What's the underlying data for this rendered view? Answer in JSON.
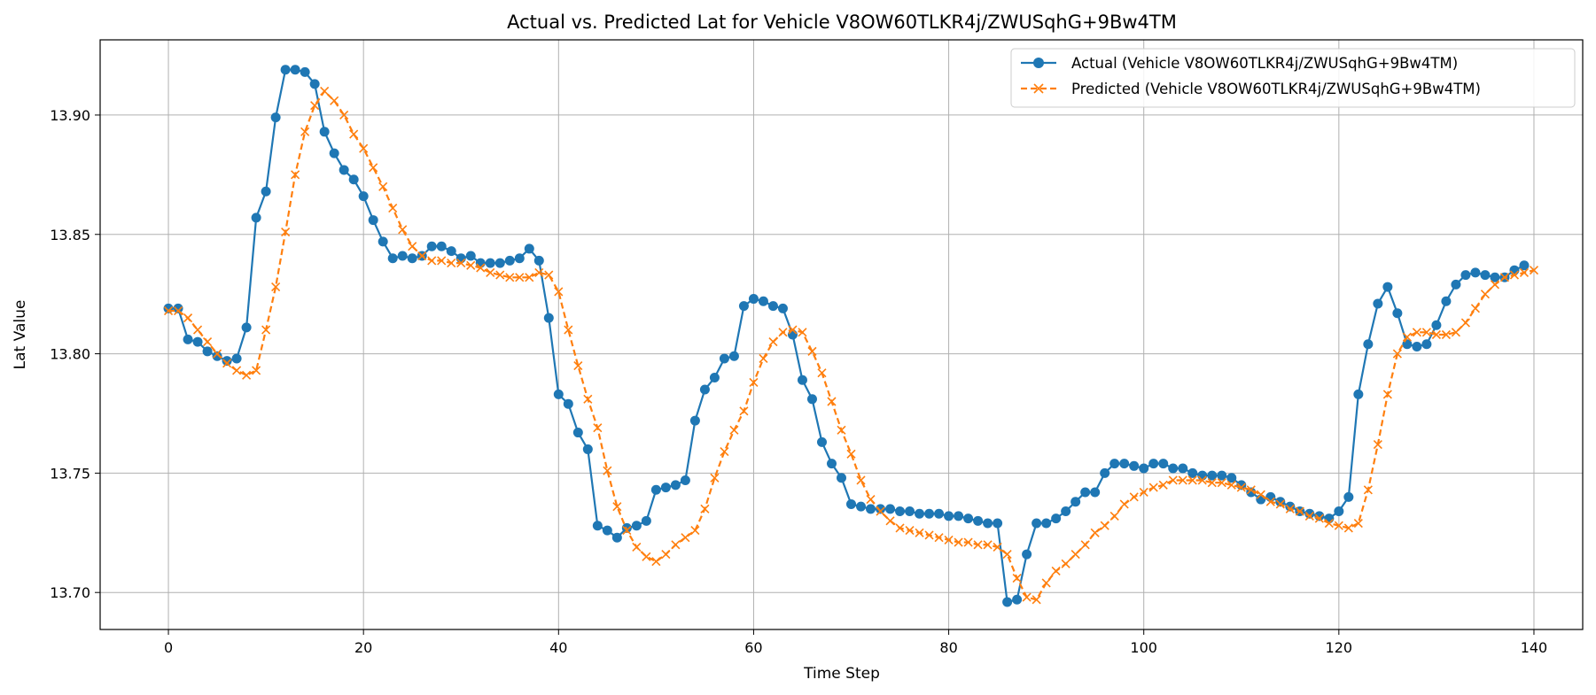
{
  "chart_data": {
    "type": "line",
    "title": "Actual vs. Predicted Lat for Vehicle V8OW60TLKR4j/ZWUSqhG+9Bw4TM",
    "xlabel": "Time Step",
    "ylabel": "Lat Value",
    "xlim": [
      -7,
      145
    ],
    "ylim": [
      13.6845,
      13.9315
    ],
    "xticks": [
      0,
      20,
      40,
      60,
      80,
      100,
      120,
      140
    ],
    "yticks": [
      13.7,
      13.75,
      13.8,
      13.85,
      13.9
    ],
    "ytick_labels": [
      "13.70",
      "13.75",
      "13.80",
      "13.85",
      "13.90"
    ],
    "grid": true,
    "legend_position": "top-right",
    "series": [
      {
        "name": "Actual (Vehicle V8OW60TLKR4j/ZWUSqhG+9Bw4TM)",
        "color": "#1f77b4",
        "linestyle": "solid",
        "marker": "circle",
        "values": [
          13.819,
          13.819,
          13.806,
          13.805,
          13.801,
          13.799,
          13.797,
          13.798,
          13.811,
          13.857,
          13.868,
          13.899,
          13.919,
          13.919,
          13.918,
          13.913,
          13.893,
          13.884,
          13.877,
          13.873,
          13.866,
          13.856,
          13.847,
          13.84,
          13.841,
          13.84,
          13.841,
          13.845,
          13.845,
          13.843,
          13.84,
          13.841,
          13.838,
          13.838,
          13.838,
          13.839,
          13.84,
          13.844,
          13.839,
          13.815,
          13.783,
          13.779,
          13.767,
          13.76,
          13.728,
          13.726,
          13.723,
          13.727,
          13.728,
          13.73,
          13.743,
          13.744,
          13.745,
          13.747,
          13.772,
          13.785,
          13.79,
          13.798,
          13.799,
          13.82,
          13.823,
          13.822,
          13.82,
          13.819,
          13.808,
          13.789,
          13.781,
          13.763,
          13.754,
          13.748,
          13.737,
          13.736,
          13.735,
          13.735,
          13.735,
          13.734,
          13.734,
          13.733,
          13.733,
          13.733,
          13.732,
          13.732,
          13.731,
          13.73,
          13.729,
          13.729,
          13.696,
          13.697,
          13.716,
          13.729,
          13.729,
          13.731,
          13.734,
          13.738,
          13.742,
          13.742,
          13.75,
          13.754,
          13.754,
          13.753,
          13.752,
          13.754,
          13.754,
          13.752,
          13.752,
          13.75,
          13.749,
          13.749,
          13.749,
          13.748,
          13.745,
          13.742,
          13.739,
          13.74,
          13.738,
          13.736,
          13.734,
          13.733,
          13.732,
          13.731,
          13.734,
          13.74,
          13.783,
          13.804,
          13.821,
          13.828,
          13.817,
          13.804,
          13.803,
          13.804,
          13.812,
          13.822,
          13.829,
          13.833,
          13.834,
          13.833,
          13.832,
          13.832,
          13.835,
          13.837
        ]
      },
      {
        "name": "Predicted (Vehicle V8OW60TLKR4j/ZWUSqhG+9Bw4TM)",
        "color": "#ff7f0e",
        "linestyle": "dashed",
        "marker": "x",
        "values": [
          13.818,
          13.818,
          13.815,
          13.81,
          13.805,
          13.8,
          13.796,
          13.793,
          13.791,
          13.793,
          13.81,
          13.828,
          13.851,
          13.875,
          13.893,
          13.904,
          13.91,
          13.906,
          13.9,
          13.892,
          13.886,
          13.878,
          13.87,
          13.861,
          13.852,
          13.845,
          13.841,
          13.839,
          13.839,
          13.838,
          13.838,
          13.837,
          13.836,
          13.834,
          13.833,
          13.832,
          13.832,
          13.832,
          13.834,
          13.833,
          13.826,
          13.81,
          13.795,
          13.781,
          13.769,
          13.751,
          13.736,
          13.726,
          13.719,
          13.715,
          13.713,
          13.716,
          13.72,
          13.723,
          13.726,
          13.735,
          13.748,
          13.759,
          13.768,
          13.776,
          13.788,
          13.798,
          13.805,
          13.809,
          13.81,
          13.809,
          13.801,
          13.792,
          13.78,
          13.768,
          13.758,
          13.747,
          13.739,
          13.734,
          13.73,
          13.727,
          13.726,
          13.725,
          13.724,
          13.723,
          13.722,
          13.721,
          13.721,
          13.72,
          13.72,
          13.719,
          13.716,
          13.706,
          13.698,
          13.697,
          13.704,
          13.709,
          13.712,
          13.716,
          13.72,
          13.725,
          13.728,
          13.732,
          13.737,
          13.74,
          13.742,
          13.744,
          13.745,
          13.747,
          13.747,
          13.747,
          13.747,
          13.746,
          13.746,
          13.745,
          13.744,
          13.743,
          13.741,
          13.738,
          13.737,
          13.735,
          13.734,
          13.732,
          13.731,
          13.729,
          13.728,
          13.727,
          13.729,
          13.743,
          13.762,
          13.783,
          13.8,
          13.807,
          13.809,
          13.809,
          13.808,
          13.808,
          13.809,
          13.813,
          13.819,
          13.825,
          13.829,
          13.832,
          13.833,
          13.834,
          13.835
        ]
      }
    ]
  }
}
